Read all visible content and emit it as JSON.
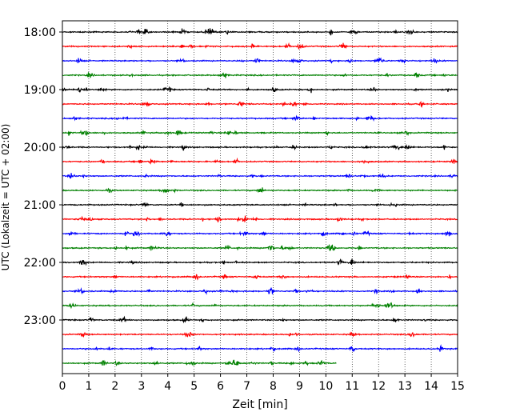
{
  "chart_data": {
    "type": "line",
    "title": "",
    "xlabel": "Zeit  [min]",
    "ylabel": "UTC (Lokalzeit = UTC + 02:00)",
    "xlim": [
      0,
      15
    ],
    "x_ticks": [
      0,
      1,
      2,
      3,
      4,
      5,
      6,
      7,
      8,
      9,
      10,
      11,
      12,
      13,
      14,
      15
    ],
    "x_tick_labels": [
      "0",
      "1",
      "2",
      "3",
      "4",
      "5",
      "6",
      "7",
      "8",
      "9",
      "10",
      "11",
      "12",
      "13",
      "14",
      "15"
    ],
    "y_tick_labels": [
      {
        "row": 0,
        "label": "18:00"
      },
      {
        "row": 4,
        "label": "19:00"
      },
      {
        "row": 8,
        "label": "20:00"
      },
      {
        "row": 12,
        "label": "21:00"
      },
      {
        "row": 16,
        "label": "22:00"
      },
      {
        "row": 20,
        "label": "23:00"
      }
    ],
    "grid": "vertical-dotted",
    "row_start_utc": "18:00",
    "row_duration_min": 15,
    "color_cycle": [
      "#000000",
      "#ff0000",
      "#0000ff",
      "#008000"
    ],
    "traces": [
      {
        "start": "18:00",
        "end_min": 15
      },
      {
        "start": "18:15",
        "end_min": 15
      },
      {
        "start": "18:30",
        "end_min": 15
      },
      {
        "start": "18:45",
        "end_min": 15
      },
      {
        "start": "19:00",
        "end_min": 15
      },
      {
        "start": "19:15",
        "end_min": 15
      },
      {
        "start": "19:30",
        "end_min": 15
      },
      {
        "start": "19:45",
        "end_min": 15
      },
      {
        "start": "20:00",
        "end_min": 15
      },
      {
        "start": "20:15",
        "end_min": 15
      },
      {
        "start": "20:30",
        "end_min": 15
      },
      {
        "start": "20:45",
        "end_min": 15
      },
      {
        "start": "21:00",
        "end_min": 15
      },
      {
        "start": "21:15",
        "end_min": 15
      },
      {
        "start": "21:30",
        "end_min": 15
      },
      {
        "start": "21:45",
        "end_min": 15
      },
      {
        "start": "22:00",
        "end_min": 15
      },
      {
        "start": "22:15",
        "end_min": 15
      },
      {
        "start": "22:30",
        "end_min": 15
      },
      {
        "start": "22:45",
        "end_min": 15
      },
      {
        "start": "23:00",
        "end_min": 15
      },
      {
        "start": "23:15",
        "end_min": 15
      },
      {
        "start": "23:30",
        "end_min": 15
      },
      {
        "start": "23:45",
        "end_min": 10.4
      }
    ]
  }
}
